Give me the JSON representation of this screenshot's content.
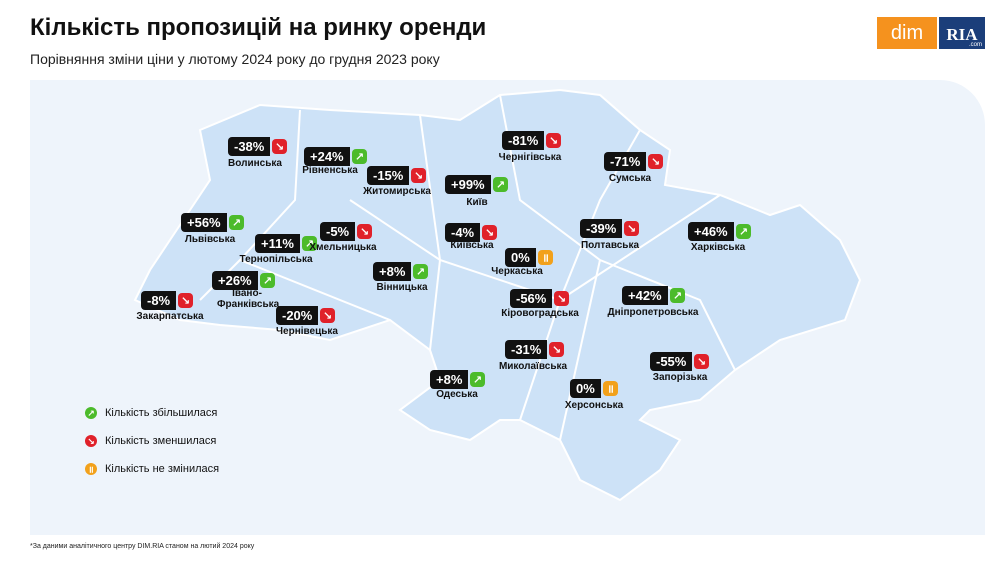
{
  "header": {
    "title": "Кількість пропозицій на ринку оренди",
    "subtitle": "Порівняння зміни ціни у лютому 2024 року до грудня 2023 року"
  },
  "logo": {
    "left": "dim",
    "right": "RIA",
    "right_small": ".com"
  },
  "regions": [
    {
      "name": "Волинська",
      "value": "-38%",
      "status": "down"
    },
    {
      "name": "Рівненська",
      "value": "+24%",
      "status": "up"
    },
    {
      "name": "Житомирська",
      "value": "-15%",
      "status": "down"
    },
    {
      "name": "Київ",
      "value": "+99%",
      "status": "up"
    },
    {
      "name": "Чернігівська",
      "value": "-81%",
      "status": "down"
    },
    {
      "name": "Сумська",
      "value": "-71%",
      "status": "down"
    },
    {
      "name": "Львівська",
      "value": "+56%",
      "status": "up"
    },
    {
      "name": "Тернопільська",
      "value": "+11%",
      "status": "up"
    },
    {
      "name": "Хмельницька",
      "value": "-5%",
      "status": "down"
    },
    {
      "name": "Київська",
      "value": "-4%",
      "status": "down"
    },
    {
      "name": "Полтавська",
      "value": "-39%",
      "status": "down"
    },
    {
      "name": "Харківська",
      "value": "+46%",
      "status": "up"
    },
    {
      "name": "Черкаська",
      "value": "0%",
      "status": "same"
    },
    {
      "name": "Вінницька",
      "value": "+8%",
      "status": "up"
    },
    {
      "name": "Івано-Франківська",
      "value": "+26%",
      "status": "up"
    },
    {
      "name": "Кіровоградська",
      "value": "-56%",
      "status": "down"
    },
    {
      "name": "Дніпропетровська",
      "value": "+42%",
      "status": "up"
    },
    {
      "name": "Закарпатська",
      "value": "-8%",
      "status": "down"
    },
    {
      "name": "Чернівецька",
      "value": "-20%",
      "status": "down"
    },
    {
      "name": "Миколаївська",
      "value": "-31%",
      "status": "down"
    },
    {
      "name": "Запорізька",
      "value": "-55%",
      "status": "down"
    },
    {
      "name": "Одеська",
      "value": "+8%",
      "status": "up"
    },
    {
      "name": "Херсонська",
      "value": "0%",
      "status": "same"
    }
  ],
  "legend": [
    {
      "label": "Кількість збільшилася",
      "status": "up"
    },
    {
      "label": "Кількість зменшилася",
      "status": "down"
    },
    {
      "label": "Кількість не змінилася",
      "status": "same"
    }
  ],
  "footnote": "*За даними аналітичного центру DIM.RIA станом на лютий 2024 року"
}
